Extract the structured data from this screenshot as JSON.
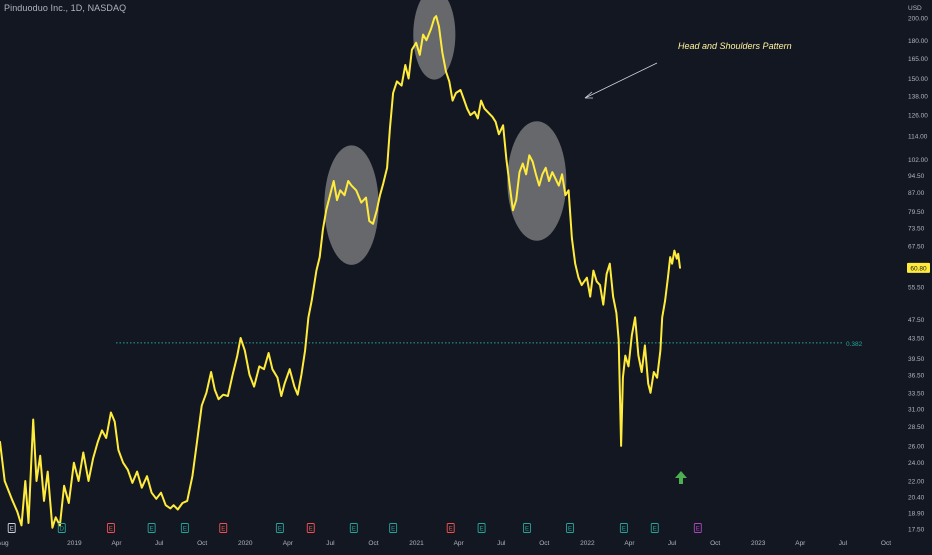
{
  "header": {
    "symbol": "Pinduoduo Inc.",
    "interval": "1D",
    "exchange": "NASDAQ"
  },
  "colors": {
    "background": "#131722",
    "price_line": "#ffeb3b",
    "axis_text": "#b2b5be",
    "price_tag_bg": "#ffeb3b",
    "support_line": "#26a69a",
    "highlight_circle": "#9e9e9e",
    "annotation_text": "#fff59d",
    "up_arrow": "#4caf50",
    "earnings_green": "#26a69a",
    "earnings_red": "#ef5350",
    "earnings_purple": "#ab47bc"
  },
  "chart_data": {
    "type": "line",
    "currency": "USD",
    "scale": "log",
    "ylim": [
      17.0,
      210.0
    ],
    "xlim": [
      "2018-07-26",
      "2023-10-31"
    ],
    "y_ticks": [
      "200.00",
      "180.00",
      "165.00",
      "150.00",
      "138.00",
      "126.00",
      "114.00",
      "102.00",
      "94.50",
      "87.00",
      "79.50",
      "73.50",
      "67.50",
      "61.50",
      "55.50",
      "47.50",
      "43.50",
      "39.50",
      "36.50",
      "33.50",
      "31.00",
      "28.50",
      "26.00",
      "24.00",
      "22.00",
      "20.40",
      "18.90",
      "17.50"
    ],
    "x_ticks": [
      {
        "label": "Aug",
        "date": "2018-08-01"
      },
      {
        "label": "2019",
        "date": "2019-01-01"
      },
      {
        "label": "Apr",
        "date": "2019-04-01"
      },
      {
        "label": "Jul",
        "date": "2019-07-01"
      },
      {
        "label": "Oct",
        "date": "2019-10-01"
      },
      {
        "label": "2020",
        "date": "2020-01-01"
      },
      {
        "label": "Apr",
        "date": "2020-04-01"
      },
      {
        "label": "Jul",
        "date": "2020-07-01"
      },
      {
        "label": "Oct",
        "date": "2020-10-01"
      },
      {
        "label": "2021",
        "date": "2021-01-01"
      },
      {
        "label": "Apr",
        "date": "2021-04-01"
      },
      {
        "label": "Jul",
        "date": "2021-07-01"
      },
      {
        "label": "Oct",
        "date": "2021-10-01"
      },
      {
        "label": "2022",
        "date": "2022-01-01"
      },
      {
        "label": "Apr",
        "date": "2022-04-01"
      },
      {
        "label": "Jul",
        "date": "2022-07-01"
      },
      {
        "label": "Oct",
        "date": "2022-10-01"
      },
      {
        "label": "2023",
        "date": "2023-01-01"
      },
      {
        "label": "Apr",
        "date": "2023-04-01"
      },
      {
        "label": "Jul",
        "date": "2023-07-01"
      },
      {
        "label": "Oct",
        "date": "2023-10-01"
      }
    ],
    "series": [
      {
        "points": [
          [
            "2018-07-26",
            26.5
          ],
          [
            "2018-08-05",
            22.0
          ],
          [
            "2018-08-20",
            20.2
          ],
          [
            "2018-09-01",
            19.0
          ],
          [
            "2018-09-10",
            17.8
          ],
          [
            "2018-09-18",
            22.0
          ],
          [
            "2018-09-25",
            18.0
          ],
          [
            "2018-10-05",
            29.5
          ],
          [
            "2018-10-12",
            22.0
          ],
          [
            "2018-10-20",
            24.8
          ],
          [
            "2018-10-28",
            20.0
          ],
          [
            "2018-11-05",
            23.0
          ],
          [
            "2018-11-15",
            17.6
          ],
          [
            "2018-11-22",
            18.5
          ],
          [
            "2018-12-01",
            17.8
          ],
          [
            "2018-12-10",
            21.5
          ],
          [
            "2018-12-20",
            19.8
          ],
          [
            "2018-12-31",
            24.0
          ],
          [
            "2019-01-10",
            22.0
          ],
          [
            "2019-01-20",
            25.2
          ],
          [
            "2019-01-31",
            22.0
          ],
          [
            "2019-02-10",
            24.5
          ],
          [
            "2019-02-20",
            26.5
          ],
          [
            "2019-03-01",
            28.0
          ],
          [
            "2019-03-10",
            27.0
          ],
          [
            "2019-03-20",
            30.5
          ],
          [
            "2019-03-28",
            29.2
          ],
          [
            "2019-04-05",
            25.5
          ],
          [
            "2019-04-15",
            24.0
          ],
          [
            "2019-04-25",
            23.2
          ],
          [
            "2019-05-05",
            21.8
          ],
          [
            "2019-05-15",
            23.0
          ],
          [
            "2019-05-25",
            21.3
          ],
          [
            "2019-06-05",
            22.5
          ],
          [
            "2019-06-15",
            20.8
          ],
          [
            "2019-06-25",
            20.2
          ],
          [
            "2019-07-05",
            20.8
          ],
          [
            "2019-07-15",
            19.6
          ],
          [
            "2019-07-25",
            19.3
          ],
          [
            "2019-08-01",
            19.6
          ],
          [
            "2019-08-10",
            19.2
          ],
          [
            "2019-08-20",
            19.8
          ],
          [
            "2019-08-30",
            20.0
          ],
          [
            "2019-09-10",
            22.5
          ],
          [
            "2019-09-20",
            26.5
          ],
          [
            "2019-09-30",
            31.5
          ],
          [
            "2019-10-10",
            33.5
          ],
          [
            "2019-10-20",
            37.0
          ],
          [
            "2019-10-28",
            34.0
          ],
          [
            "2019-11-05",
            32.5
          ],
          [
            "2019-11-15",
            33.2
          ],
          [
            "2019-11-25",
            33.0
          ],
          [
            "2019-12-05",
            36.5
          ],
          [
            "2019-12-15",
            40.0
          ],
          [
            "2019-12-22",
            43.5
          ],
          [
            "2019-12-31",
            41.0
          ],
          [
            "2020-01-10",
            36.5
          ],
          [
            "2020-01-20",
            34.5
          ],
          [
            "2020-01-31",
            38.0
          ],
          [
            "2020-02-10",
            37.5
          ],
          [
            "2020-02-20",
            40.5
          ],
          [
            "2020-02-28",
            37.5
          ],
          [
            "2020-03-10",
            36.0
          ],
          [
            "2020-03-18",
            33.0
          ],
          [
            "2020-03-25",
            35.0
          ],
          [
            "2020-04-05",
            37.5
          ],
          [
            "2020-04-15",
            34.5
          ],
          [
            "2020-04-22",
            33.2
          ],
          [
            "2020-04-30",
            36.5
          ],
          [
            "2020-05-08",
            41.0
          ],
          [
            "2020-05-15",
            48.0
          ],
          [
            "2020-05-22",
            52.0
          ],
          [
            "2020-06-01",
            60.0
          ],
          [
            "2020-06-08",
            64.0
          ],
          [
            "2020-06-15",
            73.0
          ],
          [
            "2020-06-22",
            80.0
          ],
          [
            "2020-06-30",
            86.0
          ],
          [
            "2020-07-08",
            92.0
          ],
          [
            "2020-07-15",
            84.0
          ],
          [
            "2020-07-22",
            88.0
          ],
          [
            "2020-07-31",
            86.0
          ],
          [
            "2020-08-08",
            92.0
          ],
          [
            "2020-08-15",
            90.0
          ],
          [
            "2020-08-25",
            88.0
          ],
          [
            "2020-09-05",
            83.0
          ],
          [
            "2020-09-15",
            85.0
          ],
          [
            "2020-09-22",
            76.0
          ],
          [
            "2020-09-30",
            75.0
          ],
          [
            "2020-10-08",
            80.0
          ],
          [
            "2020-10-15",
            86.0
          ],
          [
            "2020-10-22",
            91.0
          ],
          [
            "2020-10-30",
            98.0
          ],
          [
            "2020-11-05",
            118.0
          ],
          [
            "2020-11-12",
            140.0
          ],
          [
            "2020-11-20",
            148.0
          ],
          [
            "2020-11-30",
            145.0
          ],
          [
            "2020-12-08",
            160.0
          ],
          [
            "2020-12-15",
            150.0
          ],
          [
            "2020-12-22",
            172.0
          ],
          [
            "2020-12-31",
            178.0
          ],
          [
            "2021-01-08",
            168.0
          ],
          [
            "2021-01-15",
            185.0
          ],
          [
            "2021-01-22",
            180.0
          ],
          [
            "2021-02-01",
            190.0
          ],
          [
            "2021-02-08",
            200.0
          ],
          [
            "2021-02-12",
            202.0
          ],
          [
            "2021-02-18",
            192.0
          ],
          [
            "2021-02-25",
            170.0
          ],
          [
            "2021-03-05",
            155.0
          ],
          [
            "2021-03-12",
            148.0
          ],
          [
            "2021-03-19",
            135.0
          ],
          [
            "2021-03-26",
            140.0
          ],
          [
            "2021-04-05",
            142.0
          ],
          [
            "2021-04-12",
            136.0
          ],
          [
            "2021-04-19",
            130.0
          ],
          [
            "2021-04-26",
            126.0
          ],
          [
            "2021-05-05",
            128.0
          ],
          [
            "2021-05-12",
            124.0
          ],
          [
            "2021-05-19",
            135.0
          ],
          [
            "2021-05-26",
            130.0
          ],
          [
            "2021-06-05",
            127.0
          ],
          [
            "2021-06-12",
            125.0
          ],
          [
            "2021-06-19",
            122.0
          ],
          [
            "2021-06-26",
            115.0
          ],
          [
            "2021-07-05",
            120.0
          ],
          [
            "2021-07-12",
            102.0
          ],
          [
            "2021-07-19",
            90.0
          ],
          [
            "2021-07-26",
            80.0
          ],
          [
            "2021-08-02",
            84.0
          ],
          [
            "2021-08-09",
            96.0
          ],
          [
            "2021-08-16",
            100.0
          ],
          [
            "2021-08-23",
            95.0
          ],
          [
            "2021-08-30",
            104.0
          ],
          [
            "2021-09-06",
            101.0
          ],
          [
            "2021-09-13",
            95.0
          ],
          [
            "2021-09-20",
            90.0
          ],
          [
            "2021-09-27",
            95.0
          ],
          [
            "2021-10-04",
            98.0
          ],
          [
            "2021-10-11",
            92.0
          ],
          [
            "2021-10-18",
            96.0
          ],
          [
            "2021-10-25",
            93.0
          ],
          [
            "2021-11-01",
            90.0
          ],
          [
            "2021-11-08",
            95.0
          ],
          [
            "2021-11-15",
            86.0
          ],
          [
            "2021-11-22",
            88.0
          ],
          [
            "2021-11-29",
            70.0
          ],
          [
            "2021-12-06",
            62.0
          ],
          [
            "2021-12-13",
            58.0
          ],
          [
            "2021-12-20",
            56.0
          ],
          [
            "2021-12-31",
            58.0
          ],
          [
            "2022-01-07",
            53.0
          ],
          [
            "2022-01-14",
            60.0
          ],
          [
            "2022-01-21",
            57.0
          ],
          [
            "2022-01-28",
            56.0
          ],
          [
            "2022-02-04",
            51.0
          ],
          [
            "2022-02-11",
            59.0
          ],
          [
            "2022-02-18",
            62.0
          ],
          [
            "2022-02-25",
            53.0
          ],
          [
            "2022-03-04",
            49.0
          ],
          [
            "2022-03-09",
            43.0
          ],
          [
            "2022-03-14",
            26.0
          ],
          [
            "2022-03-18",
            36.0
          ],
          [
            "2022-03-23",
            40.0
          ],
          [
            "2022-03-30",
            38.0
          ],
          [
            "2022-04-06",
            44.0
          ],
          [
            "2022-04-13",
            48.0
          ],
          [
            "2022-04-20",
            40.0
          ],
          [
            "2022-04-27",
            37.0
          ],
          [
            "2022-05-04",
            42.0
          ],
          [
            "2022-05-11",
            35.0
          ],
          [
            "2022-05-16",
            33.5
          ],
          [
            "2022-05-23",
            37.0
          ],
          [
            "2022-05-30",
            36.0
          ],
          [
            "2022-06-06",
            41.0
          ],
          [
            "2022-06-10",
            48.0
          ],
          [
            "2022-06-16",
            52.0
          ],
          [
            "2022-06-22",
            58.0
          ],
          [
            "2022-06-27",
            64.0
          ],
          [
            "2022-07-01",
            62.0
          ],
          [
            "2022-07-06",
            66.0
          ],
          [
            "2022-07-11",
            63.5
          ],
          [
            "2022-07-14",
            65.0
          ],
          [
            "2022-07-18",
            60.8
          ]
        ]
      }
    ],
    "price_label": "60.80",
    "support_level": {
      "value": 42.5,
      "label": "0.382"
    },
    "annotations": [
      {
        "text": "Head and Shoulders Pattern"
      }
    ],
    "highlights": [
      {
        "name": "left-shoulder",
        "center_date": "2020-08-15",
        "center_value": 82.0,
        "rx_days": 58,
        "ry_log_ratio": 1.33
      },
      {
        "name": "head",
        "center_date": "2021-02-08",
        "center_value": 185.0,
        "rx_days": 45,
        "ry_log_ratio": 1.24
      },
      {
        "name": "right-shoulder",
        "center_date": "2021-09-15",
        "center_value": 92.0,
        "rx_days": 63,
        "ry_log_ratio": 1.33
      }
    ],
    "event_markers": [
      {
        "letter": "E",
        "date": "2018-08-20",
        "kind": "earnings-neutral"
      },
      {
        "letter": "D",
        "date": "2018-12-05",
        "kind": "dividend-green"
      },
      {
        "letter": "E",
        "date": "2019-03-20",
        "kind": "earnings-red"
      },
      {
        "letter": "E",
        "date": "2019-06-15",
        "kind": "earnings-green"
      },
      {
        "letter": "E",
        "date": "2019-08-25",
        "kind": "earnings-green"
      },
      {
        "letter": "E",
        "date": "2019-11-15",
        "kind": "earnings-red"
      },
      {
        "letter": "E",
        "date": "2020-03-15",
        "kind": "earnings-green"
      },
      {
        "letter": "E",
        "date": "2020-05-20",
        "kind": "earnings-red"
      },
      {
        "letter": "E",
        "date": "2020-08-20",
        "kind": "earnings-green"
      },
      {
        "letter": "E",
        "date": "2020-11-12",
        "kind": "earnings-green"
      },
      {
        "letter": "E",
        "date": "2021-03-15",
        "kind": "earnings-red"
      },
      {
        "letter": "E",
        "date": "2021-05-20",
        "kind": "earnings-green"
      },
      {
        "letter": "E",
        "date": "2021-08-25",
        "kind": "earnings-green"
      },
      {
        "letter": "E",
        "date": "2021-11-25",
        "kind": "earnings-green"
      },
      {
        "letter": "E",
        "date": "2022-03-20",
        "kind": "earnings-green"
      },
      {
        "letter": "E",
        "date": "2022-05-25",
        "kind": "earnings-green"
      },
      {
        "letter": "E",
        "date": "2022-08-25",
        "kind": "earnings-purple"
      }
    ]
  }
}
